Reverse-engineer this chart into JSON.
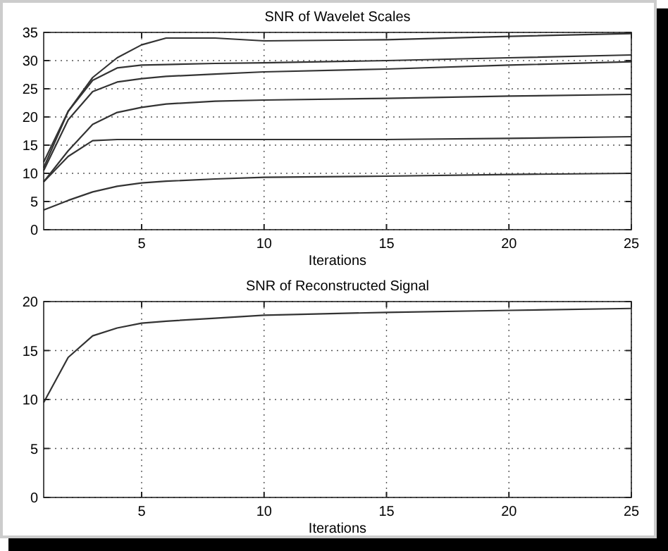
{
  "chart_data": [
    {
      "type": "line",
      "title": "SNR of Wavelet Scales",
      "xlabel": "Iterations",
      "x": [
        1,
        2,
        3,
        4,
        5,
        6,
        8,
        10,
        15,
        20,
        25
      ],
      "xlim": [
        1,
        25
      ],
      "ylim": [
        0,
        35
      ],
      "xticks": [
        5,
        10,
        15,
        20,
        25
      ],
      "yticks": [
        0,
        5,
        10,
        15,
        20,
        25,
        30,
        35
      ],
      "grid": true,
      "series": [
        {
          "color": "#333333",
          "values": [
            12,
            21,
            27,
            30.5,
            32.8,
            34,
            34,
            33.5,
            33.7,
            34.3,
            34.8
          ]
        },
        {
          "color": "#333333",
          "values": [
            11,
            21,
            26.5,
            28.7,
            29.2,
            29.3,
            29.5,
            29.6,
            30,
            30.5,
            31
          ]
        },
        {
          "color": "#333333",
          "values": [
            10.5,
            19.5,
            24.5,
            26.2,
            26.8,
            27.2,
            27.6,
            28,
            28.5,
            29.2,
            29.8
          ]
        },
        {
          "color": "#333333",
          "values": [
            8.5,
            14,
            18.7,
            20.8,
            21.7,
            22.3,
            22.8,
            23,
            23.3,
            23.7,
            24
          ]
        },
        {
          "color": "#333333",
          "values": [
            8.5,
            13,
            15.8,
            16,
            16,
            16,
            16,
            16,
            16,
            16.2,
            16.5
          ]
        },
        {
          "color": "#333333",
          "values": [
            3.5,
            5.2,
            6.7,
            7.7,
            8.3,
            8.6,
            9,
            9.3,
            9.5,
            9.8,
            10
          ]
        }
      ]
    },
    {
      "type": "line",
      "title": "SNR of Reconstructed Signal",
      "xlabel": "Iterations",
      "x": [
        1,
        2,
        3,
        4,
        5,
        6,
        8,
        10,
        15,
        20,
        25
      ],
      "xlim": [
        1,
        25
      ],
      "ylim": [
        0,
        20
      ],
      "xticks": [
        5,
        10,
        15,
        20,
        25
      ],
      "yticks": [
        0,
        5,
        10,
        15,
        20
      ],
      "grid": true,
      "series": [
        {
          "color": "#333333",
          "values": [
            9.7,
            14.3,
            16.5,
            17.3,
            17.8,
            18,
            18.3,
            18.6,
            18.9,
            19.1,
            19.3
          ]
        }
      ]
    }
  ]
}
